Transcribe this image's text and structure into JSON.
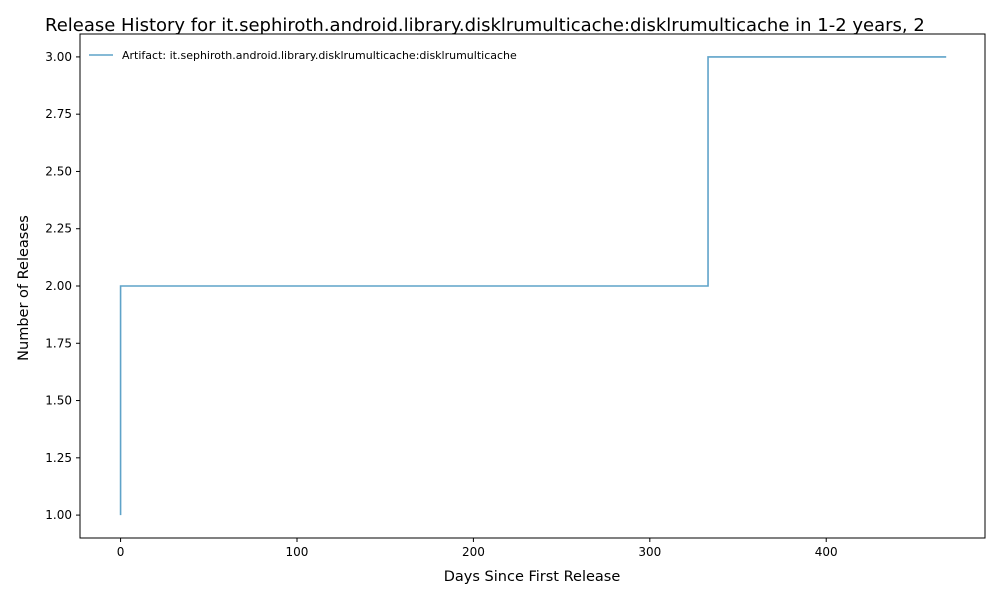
{
  "chart_data": {
    "type": "line",
    "step": "post",
    "title": "Release History for it.sephiroth.android.library.disklrumulticache:disklrumulticache in 1-2 years, 2",
    "xlabel": "Days Since First Release",
    "ylabel": "Number of Releases",
    "xlim": [
      -23,
      490
    ],
    "ylim": [
      0.9,
      3.1
    ],
    "xticks": [
      0,
      100,
      200,
      300,
      400
    ],
    "yticks": [
      1.0,
      1.25,
      1.5,
      1.75,
      2.0,
      2.25,
      2.5,
      2.75,
      3.0
    ],
    "ytick_labels": [
      "1.00",
      "1.25",
      "1.50",
      "1.75",
      "2.00",
      "2.25",
      "2.50",
      "2.75",
      "3.00"
    ],
    "grid": false,
    "legend_position": "upper-left",
    "series": [
      {
        "name": "Artifact: it.sephiroth.android.library.disklrumulticache:disklrumulticache",
        "color": "#5fa3c9",
        "x": [
          0,
          0,
          333,
          468
        ],
        "y": [
          1,
          2,
          3,
          3
        ]
      }
    ]
  }
}
